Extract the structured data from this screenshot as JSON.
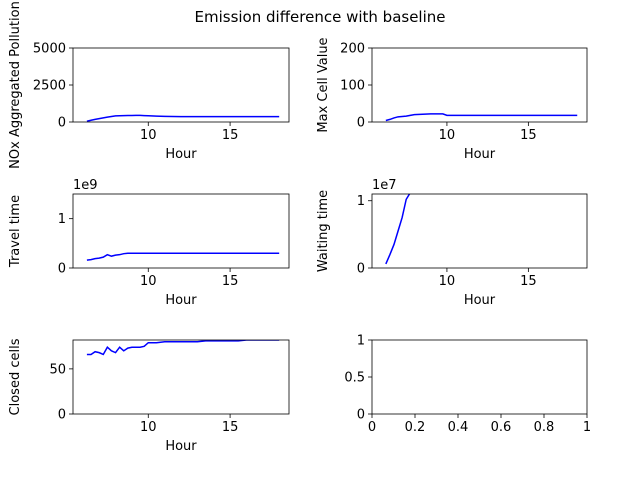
{
  "figure": {
    "suptitle": "Emission difference with baseline",
    "line_color": "#0000ff"
  },
  "chart_data": [
    {
      "type": "line",
      "title": "",
      "xlabel": "Hour",
      "ylabel": "NOx Aggregated Pollution",
      "xlim": [
        5.4,
        18.6
      ],
      "ylim": [
        0,
        5000
      ],
      "xticks": [
        10,
        15
      ],
      "yticks": [
        0,
        2500,
        5000
      ],
      "offset_label": "",
      "series": [
        {
          "x": [
            6.25,
            6.5,
            6.75,
            7,
            7.25,
            7.5,
            7.75,
            8,
            8.25,
            8.5,
            8.75,
            9,
            9.25,
            9.5,
            9.75,
            10,
            10.5,
            11,
            11.5,
            12,
            13,
            14,
            15,
            16,
            17,
            18
          ],
          "values": [
            50,
            120,
            180,
            230,
            280,
            330,
            370,
            410,
            420,
            430,
            440,
            440,
            445,
            445,
            430,
            420,
            400,
            380,
            370,
            365,
            360,
            360,
            360,
            360,
            360,
            360
          ]
        }
      ]
    },
    {
      "type": "line",
      "title": "",
      "xlabel": "Hour",
      "ylabel": "Max Cell Value",
      "xlim": [
        5.4,
        18.6
      ],
      "ylim": [
        0,
        200
      ],
      "xticks": [
        10,
        15
      ],
      "yticks": [
        0,
        100,
        200
      ],
      "offset_label": "",
      "series": [
        {
          "x": [
            6.25,
            6.5,
            6.75,
            7,
            7.25,
            7.5,
            7.75,
            8,
            8.5,
            9,
            9.5,
            9.75,
            10,
            11,
            12,
            13,
            14,
            15,
            16,
            17,
            18
          ],
          "values": [
            4,
            7,
            11,
            14,
            15,
            16,
            18,
            20,
            21,
            22,
            22,
            22,
            18,
            18,
            18,
            18,
            18,
            18,
            18,
            18,
            18
          ]
        }
      ]
    },
    {
      "type": "line",
      "title": "",
      "xlabel": "Hour",
      "ylabel": "Travel time",
      "xlim": [
        5.4,
        18.6
      ],
      "ylim": [
        0,
        1.5
      ],
      "xticks": [
        10,
        15
      ],
      "yticks": [
        0,
        1
      ],
      "offset_label": "1e9",
      "series": [
        {
          "x": [
            6.25,
            6.5,
            6.75,
            7,
            7.25,
            7.5,
            7.75,
            8,
            8.25,
            8.5,
            8.75,
            9,
            10,
            11,
            12,
            13,
            14,
            15,
            16,
            17,
            18
          ],
          "values": [
            0.16,
            0.17,
            0.19,
            0.2,
            0.22,
            0.27,
            0.24,
            0.26,
            0.27,
            0.29,
            0.3,
            0.3,
            0.3,
            0.3,
            0.3,
            0.3,
            0.3,
            0.3,
            0.3,
            0.3,
            0.3
          ]
        }
      ]
    },
    {
      "type": "line",
      "title": "",
      "xlabel": "Hour",
      "ylabel": "Waiting time",
      "xlim": [
        5.4,
        18.6
      ],
      "ylim": [
        0,
        1.1
      ],
      "xticks": [
        10,
        15
      ],
      "yticks": [
        0,
        1
      ],
      "offset_label": "1e7",
      "series": [
        {
          "x": [
            6.25,
            6.5,
            6.75,
            7,
            7.25,
            7.5,
            7.75
          ],
          "values": [
            0.06,
            0.2,
            0.35,
            0.55,
            0.75,
            1.02,
            1.12
          ]
        }
      ]
    },
    {
      "type": "line",
      "title": "",
      "xlabel": "Hour",
      "ylabel": "Closed cells",
      "xlim": [
        5.4,
        18.6
      ],
      "ylim": [
        0,
        82
      ],
      "xticks": [
        10,
        15
      ],
      "yticks": [
        0,
        50
      ],
      "offset_label": "",
      "series": [
        {
          "x": [
            6.25,
            6.5,
            6.75,
            7,
            7.25,
            7.5,
            7.75,
            8,
            8.25,
            8.5,
            8.75,
            9,
            9.25,
            9.5,
            9.75,
            10,
            10.5,
            11,
            12,
            13,
            13.5,
            14,
            15,
            15.5,
            16,
            17,
            18
          ],
          "values": [
            66,
            66,
            69,
            68,
            66,
            74,
            70,
            68,
            74,
            70,
            73,
            74,
            74,
            74,
            75,
            79,
            79,
            80,
            80,
            80,
            81,
            81,
            81,
            81,
            82,
            82,
            82
          ]
        }
      ]
    },
    {
      "type": "line",
      "title": "",
      "xlabel": "",
      "ylabel": "",
      "xlim": [
        0,
        1
      ],
      "ylim": [
        0,
        1
      ],
      "xticks": [
        0.0,
        0.2,
        0.4,
        0.6,
        0.8,
        1.0
      ],
      "yticks": [
        0.0,
        0.5,
        1.0
      ],
      "offset_label": "",
      "series": []
    }
  ]
}
